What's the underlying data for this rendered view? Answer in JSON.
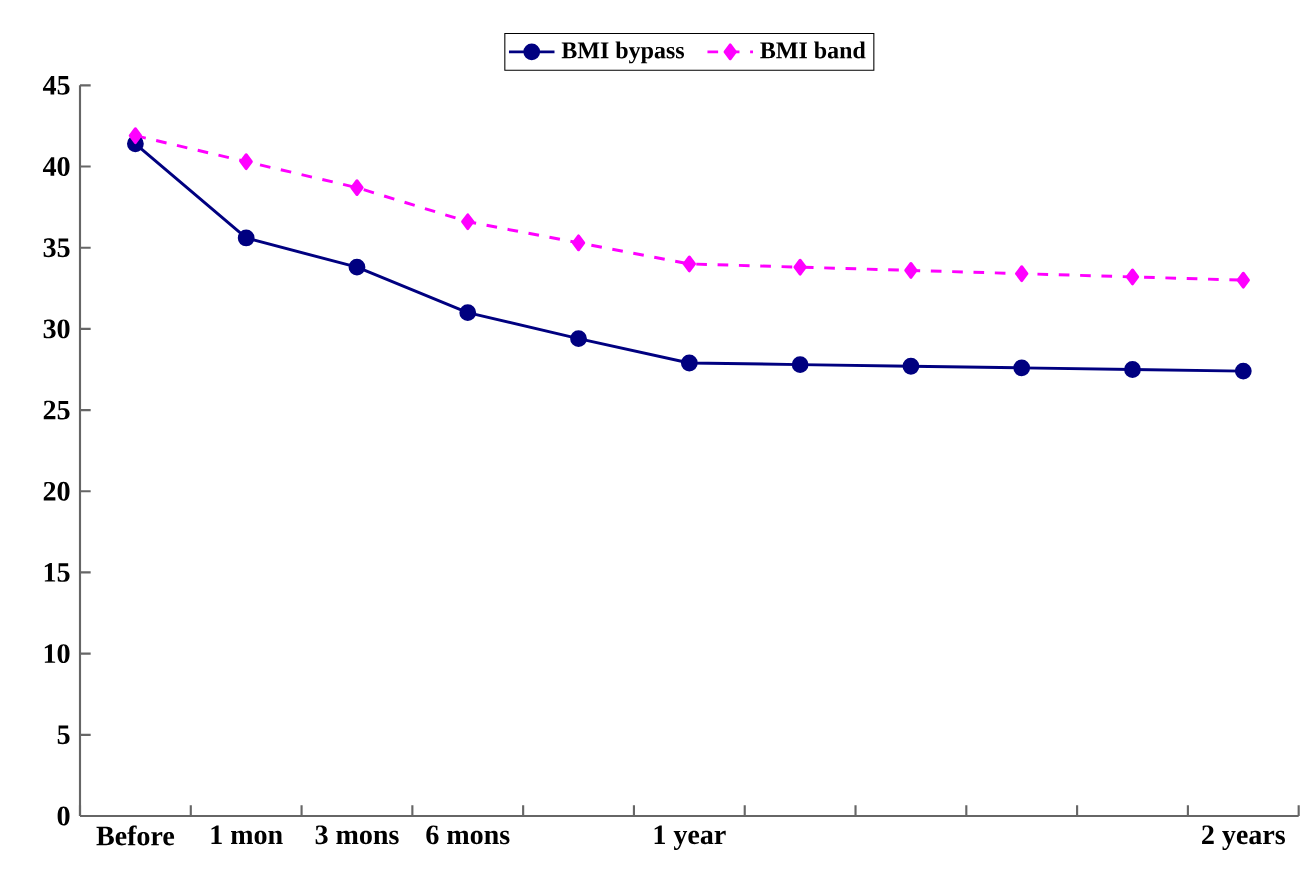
{
  "chart_data": {
    "type": "line",
    "categories": [
      "Before",
      "1 mon",
      "3 mons",
      "6 mons",
      null,
      "1 year",
      null,
      null,
      null,
      null,
      "2 years"
    ],
    "series": [
      {
        "name": "BMI bypass",
        "color": "#000080",
        "marker": "circle",
        "line_style": "solid",
        "values": [
          41.4,
          35.6,
          33.8,
          31.0,
          29.4,
          27.9,
          27.8,
          27.7,
          27.6,
          27.5,
          27.4
        ]
      },
      {
        "name": "BMI band",
        "color": "#ff00ff",
        "marker": "diamond",
        "line_style": "dashed",
        "values": [
          41.9,
          40.3,
          38.7,
          36.6,
          35.3,
          34.0,
          33.8,
          33.6,
          33.4,
          33.2,
          33.0
        ]
      }
    ],
    "ylim": [
      0,
      45
    ],
    "yticks": [
      0,
      5,
      10,
      15,
      20,
      25,
      30,
      35,
      40,
      45
    ],
    "legend": "top",
    "grid": false
  }
}
